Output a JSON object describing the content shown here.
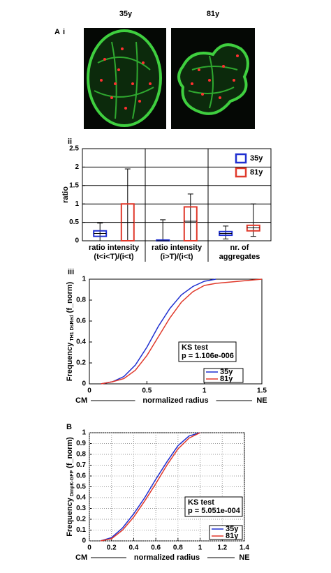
{
  "figure": {
    "panel_a": "A",
    "panel_a_sub": "i",
    "panel_ii": "ii",
    "panel_iii": "iii",
    "panel_b": "B"
  },
  "images": [
    {
      "title": "35y"
    },
    {
      "title": "81y"
    }
  ],
  "chart_data": [
    {
      "type": "box",
      "ylabel": "ratio",
      "categories": [
        [
          "ratio intensity",
          "(t<i<T)/(i<t)"
        ],
        [
          "ratio intensity",
          "(i>T)/(i<t)"
        ],
        [
          "nr. of",
          "aggregates"
        ]
      ],
      "series": [
        {
          "name": "35y",
          "color": "#1f2fd0",
          "min": [
            0,
            0,
            0.05
          ],
          "q1": [
            0.12,
            0,
            0.15
          ],
          "median": [
            0.2,
            0,
            0.2
          ],
          "q3": [
            0.27,
            0.02,
            0.25
          ],
          "max": [
            0.48,
            0.57,
            0.4
          ]
        },
        {
          "name": "81y",
          "color": "#e0392b",
          "min": [
            0,
            0,
            0.12
          ],
          "q1": [
            0,
            0,
            0.27
          ],
          "median": [
            0.5,
            0.53,
            0.35
          ],
          "q3": [
            1.0,
            0.92,
            0.42
          ],
          "max": [
            1.95,
            1.27,
            1.0
          ]
        }
      ],
      "ylim": [
        0,
        2.5
      ],
      "yticks": [
        0,
        0.5,
        1,
        1.5,
        2,
        2.5
      ],
      "grid": true
    },
    {
      "type": "line",
      "ylabel": "Frequency",
      "ylabel_sub": "TH1 DsRed",
      "ylabel_unit": "(f_norm)",
      "xlabel_left": "CM",
      "xlabel": "normalized radius",
      "xlabel_right": "NE",
      "annotation": [
        "KS test",
        "p = 1.106e-006"
      ],
      "series": [
        {
          "name": "35y",
          "color": "#1f2fd0",
          "x": [
            0.1,
            0.2,
            0.3,
            0.4,
            0.5,
            0.6,
            0.7,
            0.8,
            0.9,
            1.0,
            1.1
          ],
          "values": [
            0,
            0.02,
            0.07,
            0.18,
            0.35,
            0.55,
            0.72,
            0.85,
            0.93,
            0.98,
            1.0
          ]
        },
        {
          "name": "81y",
          "color": "#e0392b",
          "x": [
            0.1,
            0.2,
            0.3,
            0.4,
            0.5,
            0.6,
            0.7,
            0.8,
            0.9,
            1.0,
            1.1,
            1.2,
            1.3,
            1.5
          ],
          "values": [
            0,
            0.02,
            0.05,
            0.13,
            0.27,
            0.45,
            0.63,
            0.78,
            0.88,
            0.94,
            0.96,
            0.97,
            0.98,
            1.0
          ]
        }
      ],
      "xlim": [
        0,
        1.5
      ],
      "xticks": [
        0,
        0.5,
        1,
        1.5
      ],
      "ylim": [
        0,
        1
      ],
      "yticks": [
        0,
        0.2,
        0.4,
        0.6,
        0.8,
        1
      ],
      "grid": false
    },
    {
      "type": "line",
      "ylabel": "Frequency",
      "ylabel_sub": "DmpK-GFP",
      "ylabel_unit": "(f_norm)",
      "xlabel_left": "CM",
      "xlabel": "normalized radius",
      "xlabel_right": "NE",
      "annotation": [
        "KS test",
        "p = 5.051e-004"
      ],
      "series": [
        {
          "name": "35y",
          "color": "#1f2fd0",
          "x": [
            0.1,
            0.2,
            0.3,
            0.4,
            0.5,
            0.6,
            0.7,
            0.8,
            0.9,
            1.0
          ],
          "values": [
            0,
            0.03,
            0.12,
            0.25,
            0.4,
            0.57,
            0.73,
            0.88,
            0.97,
            1.0
          ]
        },
        {
          "name": "81y",
          "color": "#e0392b",
          "x": [
            0.1,
            0.2,
            0.3,
            0.4,
            0.5,
            0.6,
            0.7,
            0.8,
            0.9,
            1.0
          ],
          "values": [
            0,
            0.02,
            0.1,
            0.22,
            0.37,
            0.53,
            0.7,
            0.85,
            0.95,
            1.0
          ]
        }
      ],
      "xlim": [
        0,
        1.4
      ],
      "xticks": [
        0,
        0.2,
        0.4,
        0.6,
        0.8,
        1,
        1.2,
        1.4
      ],
      "ylim": [
        0,
        1
      ],
      "yticks": [
        0,
        0.1,
        0.2,
        0.3,
        0.4,
        0.5,
        0.6,
        0.7,
        0.8,
        0.9,
        1
      ],
      "grid": true
    }
  ]
}
